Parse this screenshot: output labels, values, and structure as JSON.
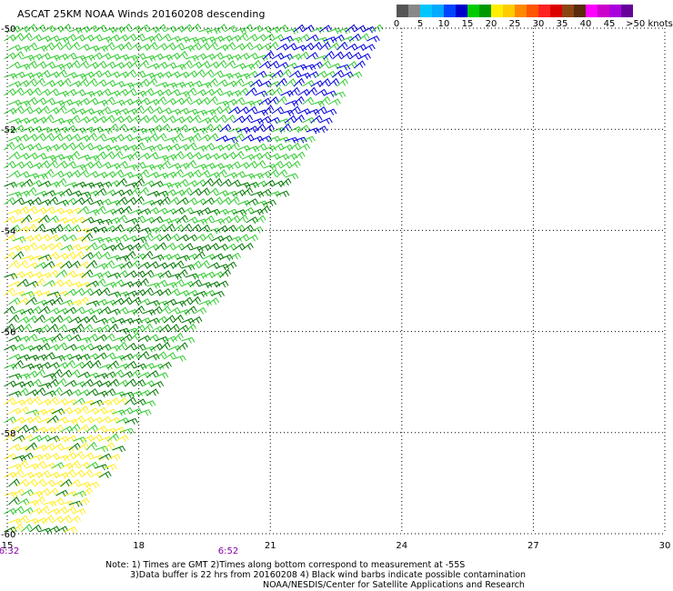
{
  "title": "ASCAT 25KM NOAA Winds 20160208 descending",
  "colorbar": {
    "colors": [
      "#555555",
      "#888888",
      "#00c8ff",
      "#00aaff",
      "#0044ff",
      "#0000cc",
      "#00cc00",
      "#009900",
      "#ffee00",
      "#ffcc00",
      "#ff8800",
      "#ff5500",
      "#ff2222",
      "#dd0000",
      "#8b4513",
      "#5a2a0a",
      "#ff00ff",
      "#cc00cc",
      "#aa00dd",
      "#660099"
    ],
    "labels": [
      {
        "text": "0",
        "pos": 0
      },
      {
        "text": "5",
        "pos": 1
      },
      {
        "text": "10",
        "pos": 2
      },
      {
        "text": "15",
        "pos": 3
      },
      {
        "text": "20",
        "pos": 4
      },
      {
        "text": "25",
        "pos": 5
      },
      {
        "text": "30",
        "pos": 6
      },
      {
        "text": "35",
        "pos": 7
      },
      {
        "text": "40",
        "pos": 8
      },
      {
        "text": "45",
        "pos": 9
      },
      {
        "text": ">50 knots",
        "pos": 10
      }
    ]
  },
  "axes": {
    "lat_labels": [
      "-50",
      "-52",
      "-54",
      "-56",
      "-58",
      "-60"
    ],
    "lon_labels": [
      "15",
      "18",
      "21",
      "24",
      "27",
      "30"
    ],
    "lat_range": [
      -60,
      -50
    ],
    "lon_range": [
      15,
      30
    ]
  },
  "time_labels": [
    {
      "text": "6:32",
      "lon": 15
    },
    {
      "text": "6:52",
      "lon": 20
    }
  ],
  "time_label_color": "#8800aa",
  "wind_colors": {
    "light_green": "#33cc33",
    "dark_green": "#007700",
    "yellow": "#ffee22",
    "blue": "#0000dd"
  },
  "notes": {
    "line1": "Note: 1) Times are GMT 2)Times along bottom correspond to measurement at -55S",
    "line2": "3)Data buffer is 22 hrs from 20160208 4) Black wind barbs indicate possible contamination",
    "line3": "NOAA/NESDIS/Center for Satellite Applications and Research"
  }
}
